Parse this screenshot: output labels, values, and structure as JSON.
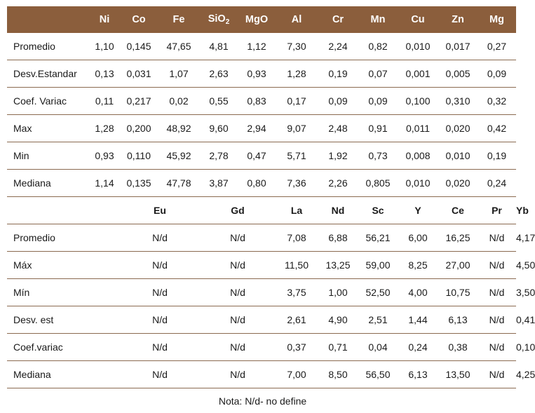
{
  "table1": {
    "headers": [
      "Ni",
      "Co",
      "Fe",
      "SiO2",
      "MgO",
      "Al",
      "Cr",
      "Mn",
      "Cu",
      "Zn",
      "Mg"
    ],
    "rows": [
      {
        "label": "Promedio",
        "values": [
          "1,10",
          "0,145",
          "47,65",
          "4,81",
          "1,12",
          "7,30",
          "2,24",
          "0,82",
          "0,010",
          "0,017",
          "0,27"
        ]
      },
      {
        "label": "Desv.Estandar",
        "values": [
          "0,13",
          "0,031",
          "1,07",
          "2,63",
          "0,93",
          "1,28",
          "0,19",
          "0,07",
          "0,001",
          "0,005",
          "0,09"
        ]
      },
      {
        "label": "Coef. Variac",
        "values": [
          "0,11",
          "0,217",
          "0,02",
          "0,55",
          "0,83",
          "0,17",
          "0,09",
          "0,09",
          "0,100",
          "0,310",
          "0,32"
        ]
      },
      {
        "label": "Max",
        "values": [
          "1,28",
          "0,200",
          "48,92",
          "9,60",
          "2,94",
          "9,07",
          "2,48",
          "0,91",
          "0,011",
          "0,020",
          "0,42"
        ]
      },
      {
        "label": "Min",
        "values": [
          "0,93",
          "0,110",
          "45,92",
          "2,78",
          "0,47",
          "5,71",
          "1,92",
          "0,73",
          "0,008",
          "0,010",
          "0,19"
        ]
      },
      {
        "label": "Mediana",
        "values": [
          "1,14",
          "0,135",
          "47,78",
          "3,87",
          "0,80",
          "7,36",
          "2,26",
          "0,805",
          "0,010",
          "0,020",
          "0,24"
        ]
      }
    ]
  },
  "table2": {
    "headers": [
      "Eu",
      "Gd",
      "La",
      "Nd",
      "Sc",
      "Y",
      "Ce",
      "Pr",
      "Yb"
    ],
    "rows": [
      {
        "label": "Promedio",
        "values": [
          "N/d",
          "N/d",
          "7,08",
          "6,88",
          "56,21",
          "6,00",
          "16,25",
          "N/d",
          "4,17"
        ]
      },
      {
        "label": "Máx",
        "values": [
          "N/d",
          "N/d",
          "11,50",
          "13,25",
          "59,00",
          "8,25",
          "27,00",
          "N/d",
          "4,50"
        ]
      },
      {
        "label": "Mín",
        "values": [
          "N/d",
          "N/d",
          "3,75",
          "1,00",
          "52,50",
          "4,00",
          "10,75",
          "N/d",
          "3,50"
        ]
      },
      {
        "label": "Desv. est",
        "values": [
          "N/d",
          "N/d",
          "2,61",
          "4,90",
          "2,51",
          "1,44",
          "6,13",
          "N/d",
          "0,41"
        ]
      },
      {
        "label": "Coef.variac",
        "values": [
          "N/d",
          "N/d",
          "0,37",
          "0,71",
          "0,04",
          "0,24",
          "0,38",
          "N/d",
          "0,10"
        ]
      },
      {
        "label": "Mediana",
        "values": [
          "N/d",
          "N/d",
          "7,00",
          "8,50",
          "56,50",
          "6,13",
          "13,50",
          "N/d",
          "4,25"
        ]
      }
    ]
  },
  "note": "Nota: N/d- no define",
  "colors": {
    "header_bg": "#8b5e3c",
    "rule": "#8a6a50"
  }
}
